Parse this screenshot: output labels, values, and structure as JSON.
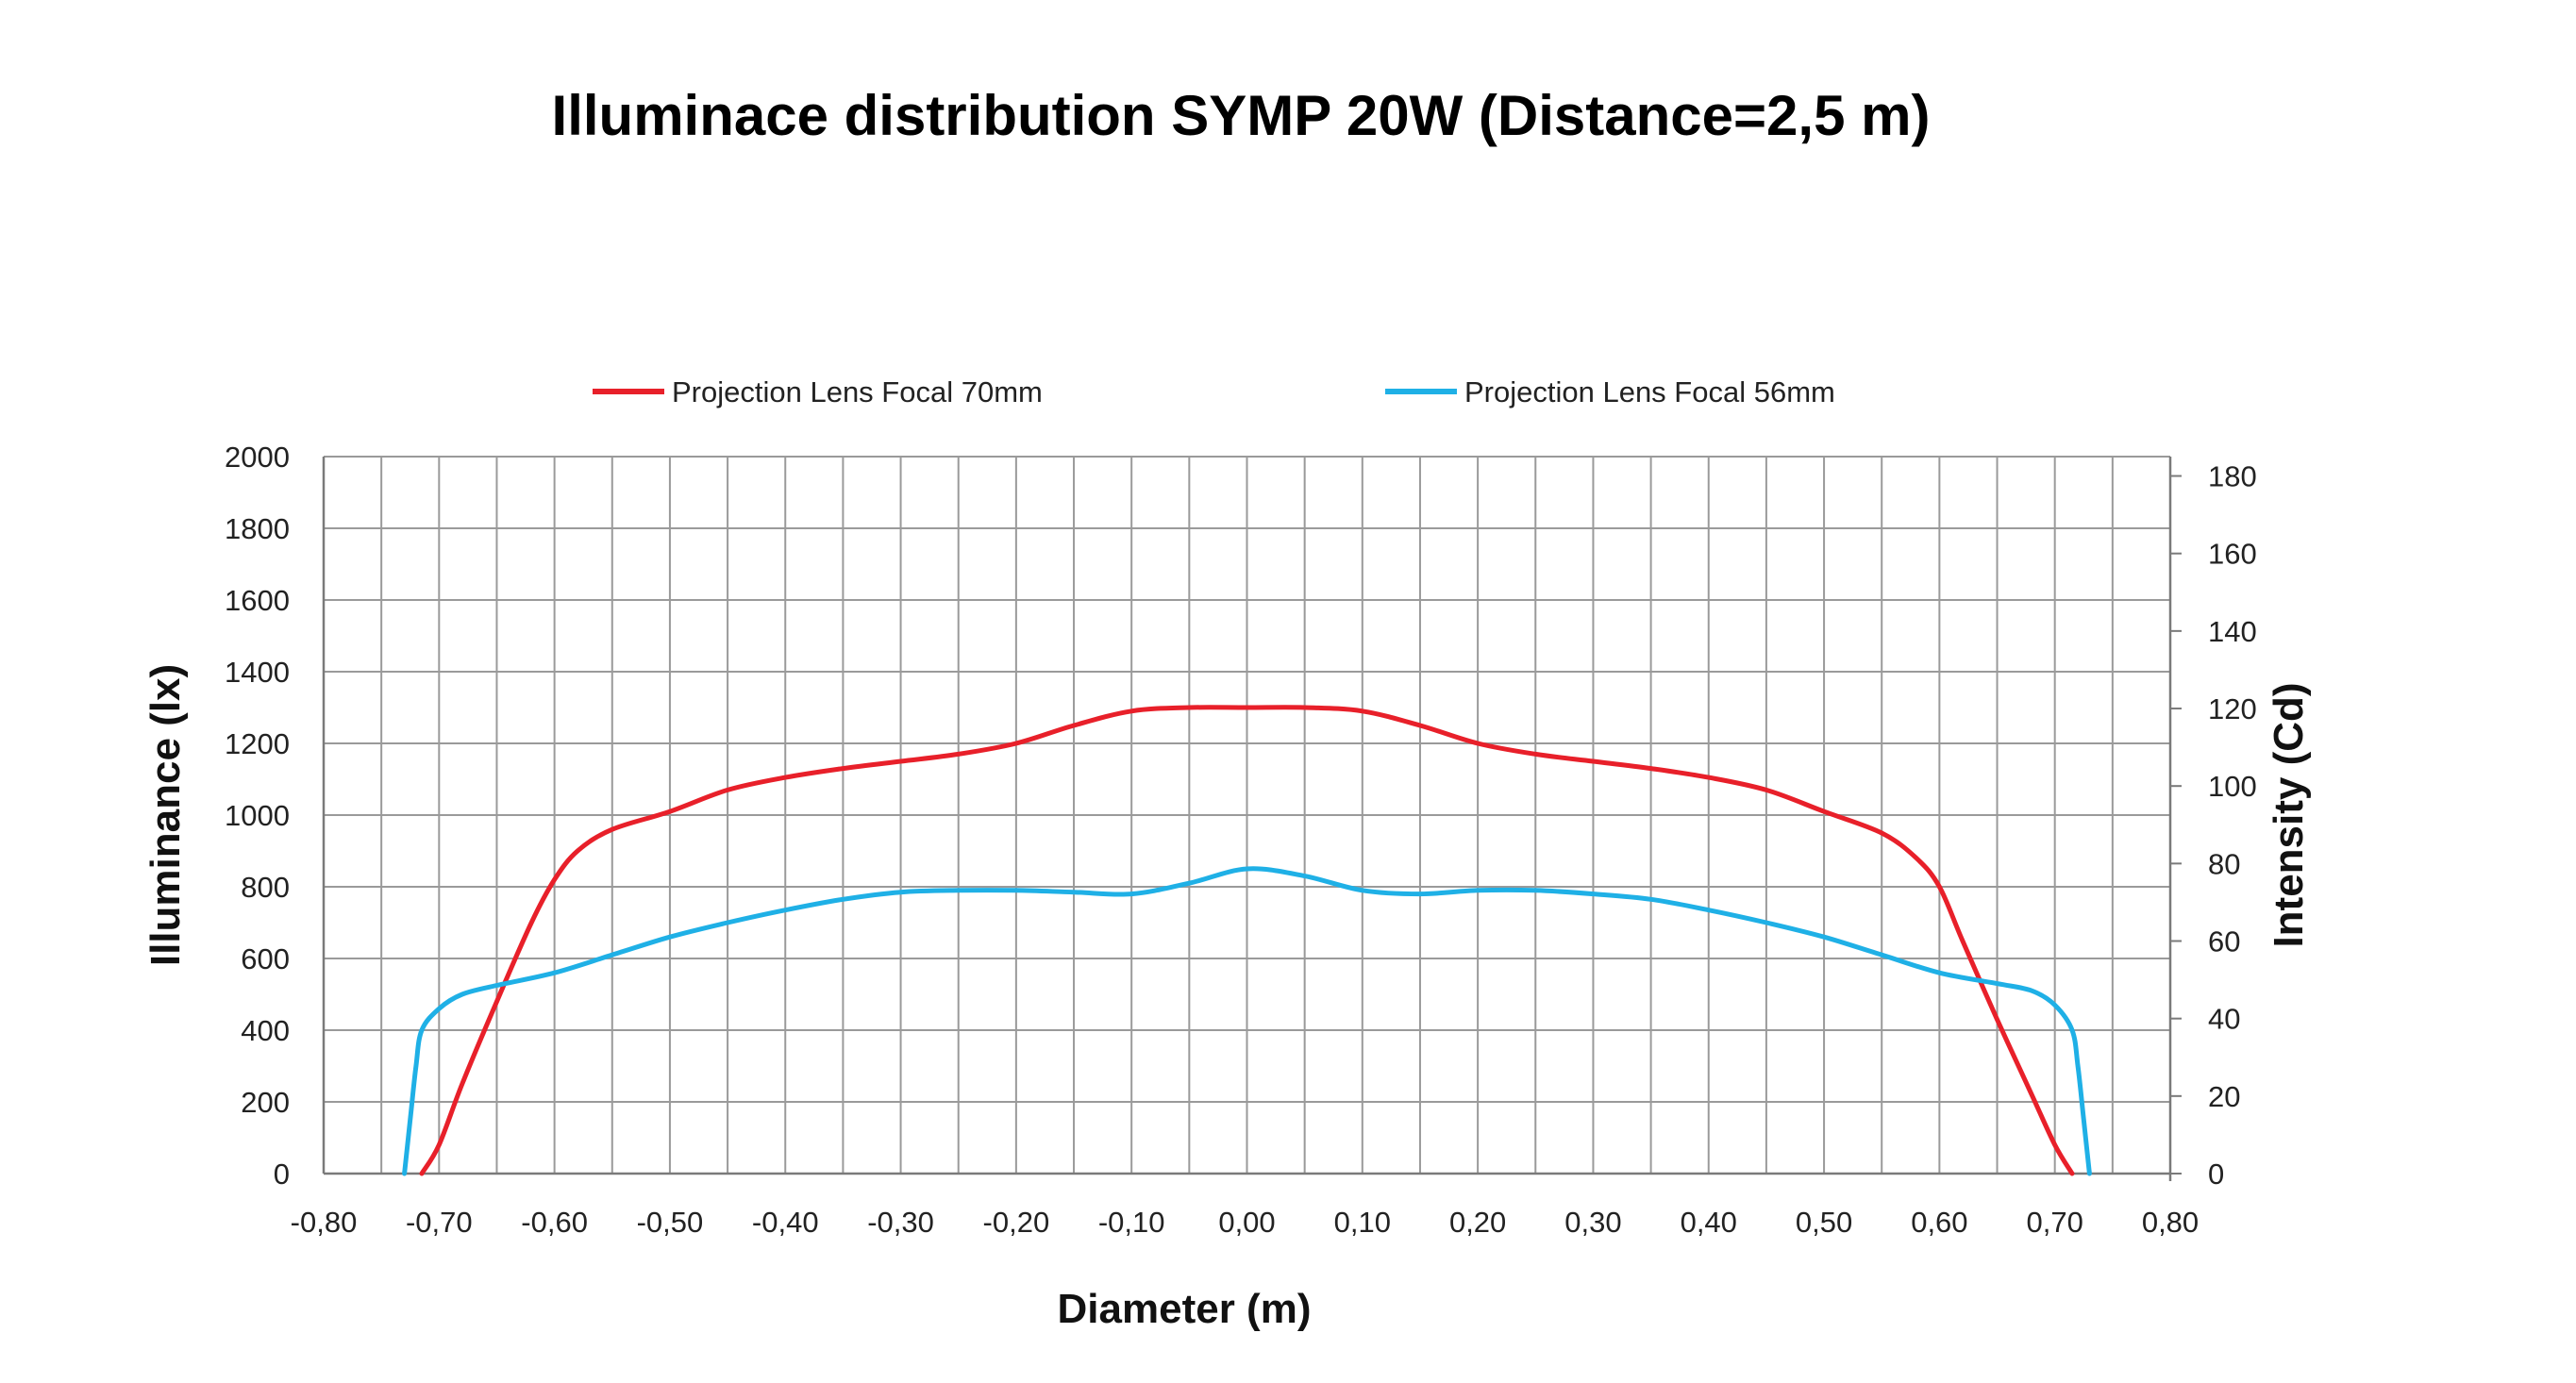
{
  "title": "Illuminace  distribution SYMP 20W (Distance=2,5 m)",
  "chart_data": {
    "type": "line",
    "xlabel": "Diameter (m)",
    "ylabel": "Illuminance  (lx)",
    "y2label": "Intensity  (Cd)",
    "xlim": [
      -0.8,
      0.8
    ],
    "ylim": [
      0,
      2000
    ],
    "y2lim": [
      0,
      185
    ],
    "x_ticks": [
      "-0,80",
      "-0,70",
      "-0,60",
      "-0,50",
      "-0,40",
      "-0,30",
      "-0,20",
      "-0,10",
      "0,00",
      "0,10",
      "0,20",
      "0,30",
      "0,40",
      "0,50",
      "0,60",
      "0,70",
      "0,80"
    ],
    "y_ticks": [
      "0",
      "200",
      "400",
      "600",
      "800",
      "1000",
      "1200",
      "1400",
      "1600",
      "1800",
      "2000"
    ],
    "y2_ticks": [
      "0",
      "20",
      "40",
      "60",
      "80",
      "100",
      "120",
      "140",
      "160",
      "180"
    ],
    "grid": true,
    "legend_position": "top",
    "series": [
      {
        "name": "Projection Lens Focal 70mm",
        "color": "#e8202a",
        "x": [
          -0.715,
          -0.7,
          -0.68,
          -0.65,
          -0.62,
          -0.6,
          -0.58,
          -0.55,
          -0.5,
          -0.45,
          -0.4,
          -0.35,
          -0.3,
          -0.25,
          -0.2,
          -0.15,
          -0.1,
          -0.05,
          0.0,
          0.05,
          0.1,
          0.15,
          0.2,
          0.25,
          0.3,
          0.35,
          0.4,
          0.45,
          0.5,
          0.55,
          0.58,
          0.6,
          0.62,
          0.65,
          0.68,
          0.7,
          0.715
        ],
        "values": [
          0,
          80,
          250,
          480,
          700,
          820,
          900,
          960,
          1010,
          1070,
          1105,
          1130,
          1150,
          1170,
          1200,
          1250,
          1290,
          1300,
          1300,
          1300,
          1290,
          1250,
          1200,
          1170,
          1150,
          1130,
          1105,
          1070,
          1010,
          950,
          880,
          800,
          650,
          430,
          220,
          80,
          0
        ]
      },
      {
        "name": "Projection Lens Focal 56mm",
        "color": "#1fb0e6",
        "x": [
          -0.73,
          -0.725,
          -0.72,
          -0.715,
          -0.7,
          -0.68,
          -0.65,
          -0.6,
          -0.55,
          -0.5,
          -0.45,
          -0.4,
          -0.35,
          -0.3,
          -0.25,
          -0.2,
          -0.15,
          -0.1,
          -0.05,
          0.0,
          0.05,
          0.1,
          0.15,
          0.2,
          0.25,
          0.3,
          0.35,
          0.4,
          0.45,
          0.5,
          0.55,
          0.6,
          0.65,
          0.68,
          0.7,
          0.715,
          0.72,
          0.725,
          0.73
        ],
        "values": [
          0,
          150,
          300,
          400,
          460,
          500,
          525,
          560,
          610,
          660,
          700,
          735,
          765,
          785,
          790,
          790,
          785,
          780,
          810,
          850,
          830,
          790,
          780,
          790,
          790,
          780,
          765,
          735,
          700,
          660,
          610,
          560,
          530,
          510,
          470,
          400,
          300,
          150,
          0
        ]
      }
    ]
  }
}
